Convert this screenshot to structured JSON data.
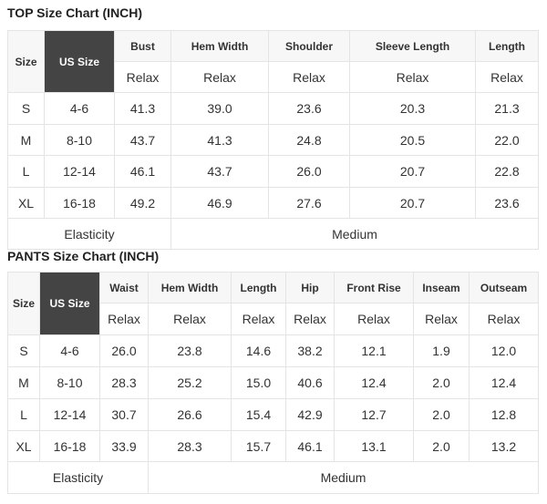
{
  "tables": [
    {
      "title": "TOP Size Chart (INCH)",
      "size_header": "Size",
      "us_header": "US Size",
      "columns": [
        "Bust",
        "Hem Width",
        "Shoulder",
        "Sleeve Length",
        "Length"
      ],
      "subheader": [
        "Relax",
        "Relax",
        "Relax",
        "Relax",
        "Relax"
      ],
      "rows": [
        {
          "size": "S",
          "us": "4-6",
          "values": [
            "41.3",
            "39.0",
            "23.6",
            "20.3",
            "21.3"
          ]
        },
        {
          "size": "M",
          "us": "8-10",
          "values": [
            "43.7",
            "41.3",
            "24.8",
            "20.5",
            "22.0"
          ]
        },
        {
          "size": "L",
          "us": "12-14",
          "values": [
            "46.1",
            "43.7",
            "26.0",
            "20.7",
            "22.8"
          ]
        },
        {
          "size": "XL",
          "us": "16-18",
          "values": [
            "49.2",
            "46.9",
            "27.6",
            "20.7",
            "23.6"
          ]
        }
      ],
      "footer_label": "Elasticity",
      "footer_value": "Medium"
    },
    {
      "title": "PANTS Size Chart (INCH)",
      "size_header": "Size",
      "us_header": "US Size",
      "columns": [
        "Waist",
        "Hem Width",
        "Length",
        "Hip",
        "Front Rise",
        "Inseam",
        "Outseam"
      ],
      "subheader": [
        "Relax",
        "Relax",
        "Relax",
        "Relax",
        "Relax",
        "Relax",
        "Relax"
      ],
      "rows": [
        {
          "size": "S",
          "us": "4-6",
          "values": [
            "26.0",
            "23.8",
            "14.6",
            "38.2",
            "12.1",
            "1.9",
            "12.0"
          ]
        },
        {
          "size": "M",
          "us": "8-10",
          "values": [
            "28.3",
            "25.2",
            "15.0",
            "40.6",
            "12.4",
            "2.0",
            "12.4"
          ]
        },
        {
          "size": "L",
          "us": "12-14",
          "values": [
            "30.7",
            "26.6",
            "15.4",
            "42.9",
            "12.7",
            "2.0",
            "12.8"
          ]
        },
        {
          "size": "XL",
          "us": "16-18",
          "values": [
            "33.9",
            "28.3",
            "15.7",
            "46.1",
            "13.1",
            "2.0",
            "13.2"
          ]
        }
      ],
      "footer_label": "Elasticity",
      "footer_value": "Medium"
    }
  ]
}
